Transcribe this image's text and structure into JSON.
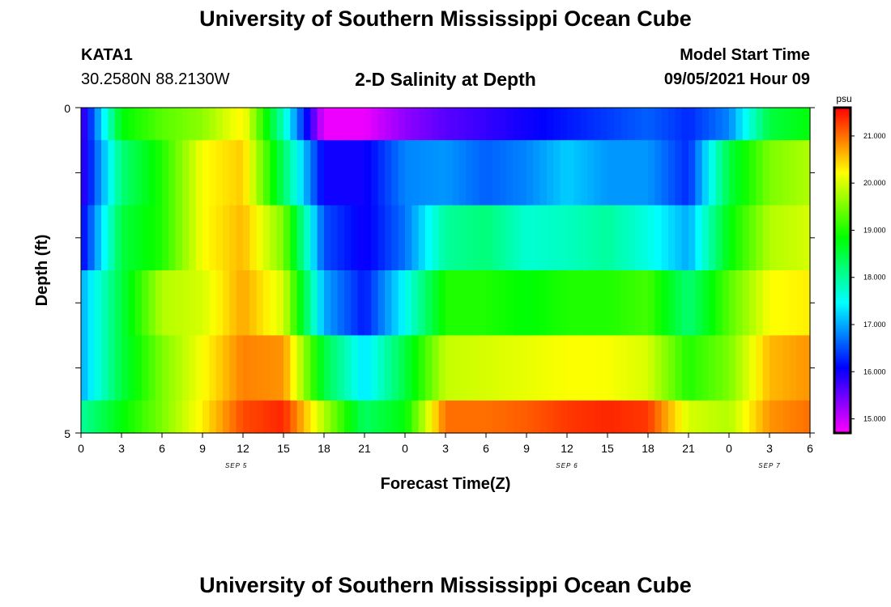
{
  "header": {
    "title": "University of Southern Mississippi Ocean Cube",
    "station_id": "KATA1",
    "station_coords": "30.2580N  88.2130W",
    "plot_title": "2-D Salinity at Depth",
    "model_start_label": "Model Start Time",
    "model_start_value": "09/05/2021 Hour 09"
  },
  "footer": {
    "title": "University of Southern Mississippi Ocean Cube"
  },
  "chart_data": {
    "type": "heatmap",
    "xlabel": "Forecast Time(Z)",
    "ylabel": "Depth (ft)",
    "ylim": [
      0,
      5
    ],
    "y_ticks": [
      "0",
      "5"
    ],
    "x_tick_labels": [
      "0",
      "3",
      "6",
      "9",
      "12",
      "15",
      "18",
      "21",
      "0",
      "3",
      "6",
      "9",
      "12",
      "15",
      "18",
      "21",
      "0",
      "3",
      "6"
    ],
    "x_range_hours": [
      0,
      54
    ],
    "date_labels": [
      {
        "label": "SEP 5",
        "hour": 11.5
      },
      {
        "label": "SEP 6",
        "hour": 36
      },
      {
        "label": "SEP 7",
        "hour": 51
      }
    ],
    "depth_bins": 6,
    "missing_column_hour": 38.5,
    "colorbar": {
      "unit": "psu",
      "min": 14.7,
      "max": 21.6,
      "tick_values": [
        15,
        16,
        17,
        18,
        19,
        20,
        21
      ],
      "tick_labels": [
        "15.000",
        "16.000",
        "17.000",
        "18.000",
        "19.000",
        "20.000",
        "21.000"
      ]
    },
    "hours": [
      0,
      3,
      6,
      9,
      12,
      15,
      18,
      21,
      24,
      27,
      30,
      33,
      36,
      39,
      42,
      45,
      48,
      51,
      54
    ],
    "rows": [
      {
        "depth_range": [
          0,
          0.5
        ],
        "values": [
          15.6,
          18.8,
          19.3,
          19.6,
          20.3,
          17.8,
          14.8,
          14.8,
          15.3,
          15.6,
          15.8,
          16.0,
          16.2,
          16.4,
          16.6,
          16.3,
          16.8,
          18.5,
          18.8
        ]
      },
      {
        "depth_range": [
          0.5,
          1.5
        ],
        "values": [
          15.7,
          18.2,
          19.0,
          20.2,
          20.5,
          18.3,
          16.0,
          16.0,
          16.8,
          16.9,
          16.6,
          16.8,
          17.2,
          16.9,
          16.9,
          16.3,
          18.5,
          19.5,
          19.8
        ]
      },
      {
        "depth_range": [
          1.5,
          2.5
        ],
        "values": [
          16.0,
          18.5,
          19.0,
          20.2,
          20.6,
          19.5,
          16.5,
          16.0,
          16.7,
          18.0,
          18.2,
          17.7,
          17.8,
          18.0,
          17.6,
          17.0,
          18.8,
          19.8,
          20.0
        ]
      },
      {
        "depth_range": [
          2.5,
          3.5
        ],
        "values": [
          17.0,
          18.5,
          19.8,
          20.0,
          20.7,
          20.0,
          17.0,
          16.2,
          17.5,
          19.0,
          19.0,
          18.8,
          19.0,
          19.0,
          19.2,
          18.2,
          19.3,
          20.2,
          20.3
        ]
      },
      {
        "depth_range": [
          3.5,
          4.5
        ],
        "values": [
          17.0,
          18.5,
          19.5,
          20.2,
          20.9,
          20.8,
          18.5,
          17.3,
          18.5,
          19.9,
          20.0,
          20.1,
          20.2,
          20.2,
          20.0,
          19.0,
          19.5,
          20.6,
          20.8
        ]
      },
      {
        "depth_range": [
          4.5,
          5
        ],
        "values": [
          18.0,
          18.8,
          19.5,
          20.3,
          21.2,
          21.4,
          19.8,
          18.3,
          18.8,
          21.0,
          21.0,
          21.1,
          21.3,
          21.4,
          21.3,
          20.0,
          19.8,
          20.8,
          21.0
        ]
      }
    ]
  }
}
